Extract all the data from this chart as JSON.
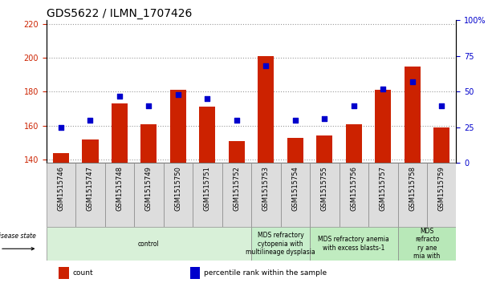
{
  "title": "GDS5622 / ILMN_1707426",
  "samples": [
    "GSM1515746",
    "GSM1515747",
    "GSM1515748",
    "GSM1515749",
    "GSM1515750",
    "GSM1515751",
    "GSM1515752",
    "GSM1515753",
    "GSM1515754",
    "GSM1515755",
    "GSM1515756",
    "GSM1515757",
    "GSM1515758",
    "GSM1515759"
  ],
  "count_values": [
    144,
    152,
    173,
    161,
    181,
    171,
    151,
    201,
    153,
    154,
    161,
    181,
    195,
    159
  ],
  "percentile_values": [
    25,
    30,
    47,
    40,
    48,
    45,
    30,
    68,
    30,
    31,
    40,
    52,
    57,
    40
  ],
  "ylim_left": [
    138,
    222
  ],
  "ylim_right": [
    0,
    100
  ],
  "yticks_left": [
    140,
    160,
    180,
    200,
    220
  ],
  "yticks_right": [
    0,
    25,
    50,
    75,
    100
  ],
  "bar_color": "#cc2200",
  "dot_color": "#0000cc",
  "bar_width": 0.55,
  "disease_groups": [
    {
      "label": "control",
      "start": 0,
      "end": 7,
      "color": "#d8f0d8"
    },
    {
      "label": "MDS refractory\ncytopenia with\nmultilineage dysplasia",
      "start": 7,
      "end": 9,
      "color": "#c8eecc"
    },
    {
      "label": "MDS refractory anemia\nwith excess blasts-1",
      "start": 9,
      "end": 12,
      "color": "#c0ecc0"
    },
    {
      "label": "MDS\nrefracto\nry ane\nmia with",
      "start": 12,
      "end": 14,
      "color": "#b8e8b8"
    }
  ],
  "legend_items": [
    {
      "label": "count",
      "color": "#cc2200"
    },
    {
      "label": "percentile rank within the sample",
      "color": "#0000cc"
    }
  ],
  "title_fontsize": 10,
  "tick_fontsize": 6,
  "disease_label_fontsize": 6,
  "group_label_fontsize": 5.5,
  "sample_box_color": "#dddddd",
  "sample_box_edge": "#888888"
}
